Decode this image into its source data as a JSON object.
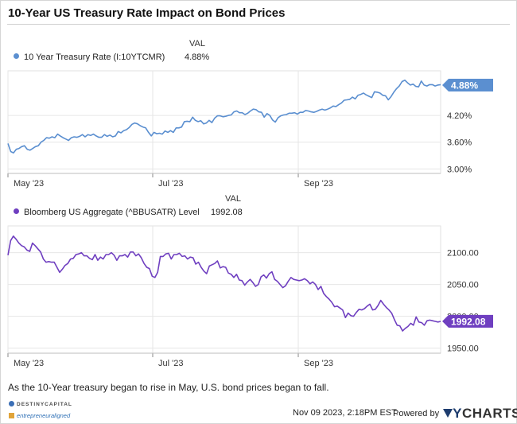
{
  "title": "10-Year US Treasury Rate Impact on Bond Prices",
  "caption": "As the 10-Year treasury began to rise in May, U.S. bond prices began to fall.",
  "footer": {
    "date": "Nov 09 2023, 2:18PM EST.",
    "powered_by": "Powered by",
    "brand_y": "Y",
    "brand_rest": "CHARTS",
    "logo1": "DESTINYCAPITAL",
    "logo2": "entrepreneuraligned"
  },
  "colors": {
    "treasury": "#5b8fd0",
    "bond": "#6f3fc0",
    "grid": "#e6e6e6",
    "axis": "#888888"
  },
  "chart_data": [
    {
      "type": "line",
      "legend_header": "VAL",
      "series": [
        {
          "name": "10 Year Treasury Rate (I:10YTCMR)",
          "value_label": "4.88%",
          "end_value": 4.88,
          "y": [
            3.57,
            3.39,
            3.36,
            3.44,
            3.46,
            3.5,
            3.52,
            3.44,
            3.42,
            3.46,
            3.5,
            3.52,
            3.6,
            3.64,
            3.7,
            3.69,
            3.72,
            3.7,
            3.78,
            3.74,
            3.7,
            3.67,
            3.64,
            3.7,
            3.72,
            3.71,
            3.73,
            3.77,
            3.72,
            3.77,
            3.75,
            3.78,
            3.74,
            3.71,
            3.71,
            3.77,
            3.73,
            3.76,
            3.72,
            3.74,
            3.84,
            3.81,
            3.86,
            3.88,
            3.93,
            4.0,
            4.03,
            4.01,
            3.97,
            3.94,
            3.92,
            3.82,
            3.74,
            3.82,
            3.79,
            3.8,
            3.78,
            3.85,
            3.82,
            3.86,
            3.82,
            3.92,
            3.92,
            3.94,
            4.06,
            4.07,
            4.06,
            4.16,
            4.09,
            4.06,
            4.08,
            4.01,
            4.03,
            4.09,
            4.04,
            4.14,
            4.19,
            4.19,
            4.17,
            4.18,
            4.2,
            4.21,
            4.28,
            4.3,
            4.26,
            4.26,
            4.22,
            4.25,
            4.3,
            4.34,
            4.33,
            4.28,
            4.27,
            4.16,
            4.24,
            4.2,
            4.1,
            4.05,
            4.15,
            4.19,
            4.21,
            4.22,
            4.25,
            4.25,
            4.26,
            4.23,
            4.27,
            4.27,
            4.31,
            4.3,
            4.28,
            4.27,
            4.29,
            4.32,
            4.34,
            4.32,
            4.34,
            4.37,
            4.41,
            4.4,
            4.44,
            4.48,
            4.54,
            4.55,
            4.56,
            4.61,
            4.57,
            4.65,
            4.67,
            4.7,
            4.66,
            4.63,
            4.6,
            4.73,
            4.72,
            4.7,
            4.65,
            4.64,
            4.55,
            4.62,
            4.72,
            4.8,
            4.86,
            4.96,
            4.99,
            4.93,
            4.88,
            4.9,
            4.85,
            4.84,
            4.97,
            4.88,
            4.86,
            4.89,
            4.89,
            4.86,
            4.88,
            4.89
          ]
        }
      ],
      "x_labels": [
        "May '23",
        "Jul '23",
        "Sep '23"
      ],
      "y_ticks": [
        "3.00%",
        "3.60%",
        "4.20%"
      ],
      "ylim": [
        2.9,
        5.2
      ]
    },
    {
      "type": "line",
      "legend_header": "VAL",
      "series": [
        {
          "name": "Bloomberg US Aggregate (^BBUSATR) Level",
          "value_label": "1992.08",
          "end_value": 1992.08,
          "y": [
            2096,
            2119,
            2126,
            2121,
            2115,
            2111,
            2109,
            2104,
            2102,
            2115,
            2111,
            2106,
            2101,
            2090,
            2085,
            2086,
            2085,
            2085,
            2077,
            2069,
            2074,
            2080,
            2083,
            2090,
            2091,
            2097,
            2098,
            2100,
            2095,
            2095,
            2091,
            2089,
            2097,
            2088,
            2093,
            2090,
            2097,
            2097,
            2100,
            2096,
            2088,
            2095,
            2095,
            2097,
            2093,
            2101,
            2101,
            2095,
            2098,
            2092,
            2083,
            2077,
            2075,
            2063,
            2061,
            2069,
            2094,
            2094,
            2098,
            2099,
            2090,
            2097,
            2097,
            2099,
            2094,
            2095,
            2090,
            2093,
            2092,
            2082,
            2085,
            2077,
            2071,
            2067,
            2079,
            2081,
            2083,
            2087,
            2076,
            2078,
            2077,
            2068,
            2066,
            2061,
            2066,
            2057,
            2056,
            2049,
            2054,
            2058,
            2053,
            2047,
            2050,
            2062,
            2065,
            2060,
            2067,
            2070,
            2058,
            2055,
            2050,
            2045,
            2048,
            2055,
            2061,
            2058,
            2057,
            2056,
            2057,
            2059,
            2056,
            2051,
            2054,
            2050,
            2042,
            2047,
            2036,
            2031,
            2027,
            2022,
            2015,
            2016,
            2013,
            2010,
            1998,
            2005,
            2001,
            2000,
            2006,
            2011,
            2010,
            2012,
            2016,
            2019,
            2010,
            2011,
            2017,
            2025,
            2019,
            2014,
            2010,
            2005,
            1995,
            1986,
            1985,
            1977,
            1981,
            1984,
            1989,
            1986,
            1999,
            1991,
            1990,
            1986,
            1993,
            1994,
            1993,
            1992,
            1991,
            1992
          ]
        }
      ],
      "x_labels": [
        "May '23",
        "Jul '23",
        "Sep '23"
      ],
      "y_ticks": [
        "1950.00",
        "2000.00",
        "2050.00",
        "2100.00"
      ],
      "ylim": [
        1942,
        2142
      ]
    }
  ]
}
